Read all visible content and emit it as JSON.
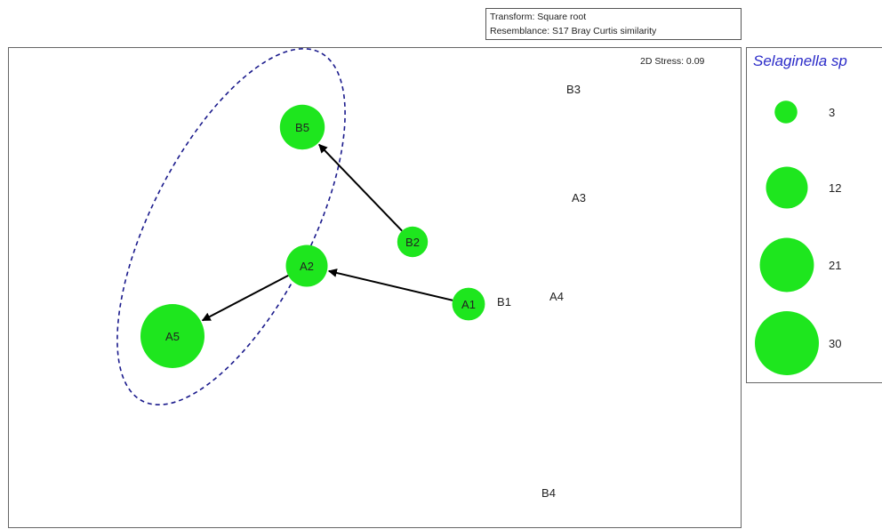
{
  "info": {
    "transform": "Transform: Square root",
    "resemblance": "Resemblance: S17 Bray Curtis similarity"
  },
  "stress_label": "2D Stress: 0.09",
  "legend": {
    "title": "Selaginella sp",
    "entries": [
      {
        "label": "3",
        "value": 3
      },
      {
        "label": "12",
        "value": 12
      },
      {
        "label": "21",
        "value": 21
      },
      {
        "label": "30",
        "value": 30
      }
    ]
  },
  "colors": {
    "bubble": "#1ee61e",
    "ellipse": "#1a1a8c",
    "arrow": "#000000",
    "legend_title": "#2a2ac8"
  },
  "chart_data": {
    "type": "scatter",
    "title": "",
    "xlabel": "",
    "ylabel": "",
    "grid": false,
    "points": [
      {
        "label": "B3",
        "value": 0
      },
      {
        "label": "B5",
        "value": 14
      },
      {
        "label": "A3",
        "value": 0
      },
      {
        "label": "B2",
        "value": 6
      },
      {
        "label": "A2",
        "value": 12
      },
      {
        "label": "A1",
        "value": 7
      },
      {
        "label": "B1",
        "value": 0
      },
      {
        "label": "A4",
        "value": 0
      },
      {
        "label": "A5",
        "value": 30
      },
      {
        "label": "B4",
        "value": 0
      }
    ],
    "arrows": [
      {
        "from": "B2",
        "to": "B5"
      },
      {
        "from": "A1",
        "to": "A2"
      },
      {
        "from": "A2",
        "to": "A5"
      }
    ],
    "ellipse_group": [
      "B5",
      "A2",
      "A5"
    ]
  }
}
